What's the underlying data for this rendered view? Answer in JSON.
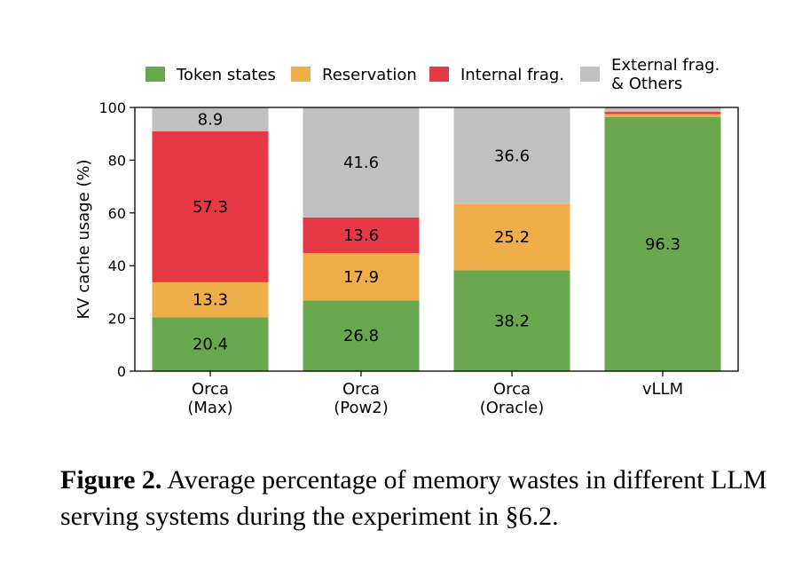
{
  "chart_data": {
    "type": "bar",
    "stacked": true,
    "categories": [
      [
        "Orca",
        "(Max)"
      ],
      [
        "Orca",
        "(Pow2)"
      ],
      [
        "Orca",
        "(Oracle)"
      ],
      [
        "vLLM"
      ]
    ],
    "series": [
      {
        "name": "Token states",
        "color": "#6aa84f",
        "values": [
          20.4,
          26.8,
          38.2,
          96.3
        ]
      },
      {
        "name": "Reservation",
        "color": "#efae4a",
        "values": [
          13.3,
          17.9,
          25.2,
          1.2
        ]
      },
      {
        "name": "Internal frag.",
        "color": "#e63946",
        "values": [
          57.3,
          13.6,
          0,
          0.8
        ]
      },
      {
        "name": "External frag.\n& Others",
        "color": "#c0c0c0",
        "values": [
          8.9,
          41.6,
          36.6,
          1.7
        ]
      }
    ],
    "data_labels": [
      [
        "20.4",
        "13.3",
        "57.3",
        "8.9"
      ],
      [
        "26.8",
        "17.9",
        "13.6",
        "41.6"
      ],
      [
        "38.2",
        "25.2",
        "",
        "36.6"
      ],
      [
        "96.3",
        "",
        "",
        ""
      ]
    ],
    "ylabel": "KV cache usage (%)",
    "xlabel": "",
    "ylim": [
      0,
      100
    ],
    "yticks": [
      0,
      20,
      40,
      60,
      80,
      100
    ],
    "grid": false,
    "legend_position": "top"
  },
  "caption": {
    "lead": "Figure 2.",
    "text": " Average percentage of memory wastes in different LLM serving systems during the experiment in §6.2."
  }
}
